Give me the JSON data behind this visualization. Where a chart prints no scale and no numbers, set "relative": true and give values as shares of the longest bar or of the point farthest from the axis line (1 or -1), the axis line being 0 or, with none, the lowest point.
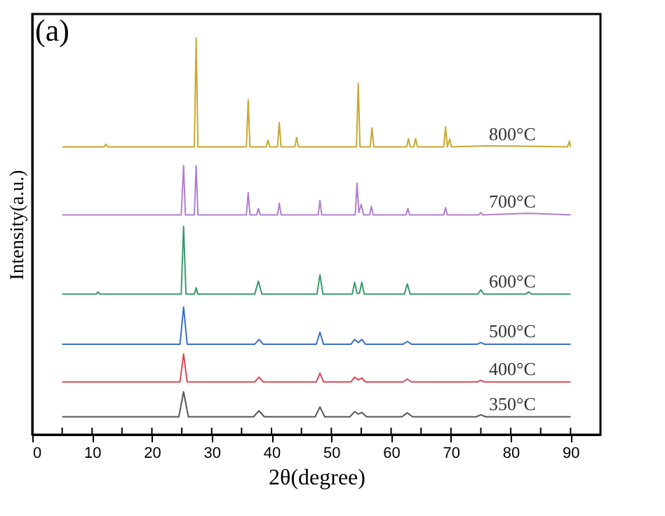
{
  "chart_data": {
    "type": "line",
    "relative": true,
    "xlabel": "2θ(degree)",
    "ylabel": "Intensity(a.u.)",
    "annotations": [
      "(a)"
    ],
    "xlim": [
      0,
      95
    ],
    "xticks": [
      0,
      {
        "value": 5,
        "label": null
      },
      10,
      {
        "value": 15,
        "label": null
      },
      20,
      {
        "value": 25,
        "label": null
      },
      30,
      {
        "value": 35,
        "label": null
      },
      40,
      {
        "value": 45,
        "label": null
      },
      50,
      {
        "value": 55,
        "label": null
      },
      60,
      {
        "value": 65,
        "label": null
      },
      70,
      {
        "value": 75,
        "label": null
      },
      80,
      {
        "value": 85,
        "label": null
      },
      90
    ],
    "grid": false,
    "marker": "none",
    "line_style": "solid",
    "series": [
      {
        "name": "800°C",
        "color": "#c8a832",
        "x": [
          5,
          12,
          12.3,
          12.6,
          20,
          27.1,
          27.4,
          27.7,
          35.8,
          36.1,
          36.4,
          39.1,
          39.4,
          39.7,
          41,
          41.3,
          41.6,
          43.9,
          44.2,
          44.5,
          54.2,
          54.5,
          54.8,
          56.5,
          56.8,
          57.1,
          62.6,
          62.9,
          63.2,
          63.8,
          64.1,
          64.4,
          68.8,
          69.1,
          69.4,
          69.8,
          70.1,
          76,
          82,
          89.5,
          89.8,
          90
        ],
        "values": [
          0.725,
          0.725,
          0.732,
          0.725,
          0.725,
          0.725,
          1.0,
          0.725,
          0.725,
          0.844,
          0.725,
          0.725,
          0.742,
          0.725,
          0.725,
          0.786,
          0.725,
          0.725,
          0.749,
          0.725,
          0.725,
          0.885,
          0.725,
          0.725,
          0.773,
          0.725,
          0.725,
          0.746,
          0.725,
          0.725,
          0.746,
          0.725,
          0.725,
          0.776,
          0.725,
          0.745,
          0.725,
          0.728,
          0.727,
          0.725,
          0.74,
          0.725
        ]
      },
      {
        "name": "700°C",
        "color": "#b07fd0",
        "x": [
          5,
          24.9,
          25.3,
          25.6,
          27.1,
          27.4,
          27.7,
          35.8,
          36.1,
          36.4,
          37.5,
          37.8,
          38.1,
          41,
          41.3,
          41.6,
          47.8,
          48.1,
          48.4,
          54,
          54.3,
          54.6,
          55,
          55.4,
          56.4,
          56.7,
          57,
          62.5,
          62.8,
          63.1,
          68.8,
          69.1,
          69.4,
          74.7,
          75,
          75.3,
          82.7,
          90
        ],
        "values": [
          0.554,
          0.554,
          0.678,
          0.554,
          0.554,
          0.678,
          0.554,
          0.554,
          0.61,
          0.554,
          0.554,
          0.57,
          0.554,
          0.554,
          0.583,
          0.554,
          0.554,
          0.59,
          0.554,
          0.554,
          0.634,
          0.56,
          0.58,
          0.554,
          0.554,
          0.575,
          0.554,
          0.554,
          0.57,
          0.554,
          0.554,
          0.572,
          0.554,
          0.554,
          0.56,
          0.554,
          0.558,
          0.554
        ]
      },
      {
        "name": "600°C",
        "color": "#3a9a6a",
        "x": [
          5,
          10.7,
          11,
          11.3,
          24.9,
          25.3,
          25.7,
          27.1,
          27.4,
          27.7,
          37.2,
          37.8,
          38.4,
          47.6,
          48.1,
          48.6,
          53.5,
          53.9,
          54.3,
          54.7,
          55.1,
          55.5,
          62.2,
          62.7,
          63.2,
          74.5,
          75,
          75.5,
          82.5,
          83,
          83.5,
          90
        ],
        "values": [
          0.354,
          0.354,
          0.36,
          0.354,
          0.354,
          0.525,
          0.354,
          0.354,
          0.37,
          0.354,
          0.354,
          0.387,
          0.354,
          0.354,
          0.403,
          0.354,
          0.354,
          0.384,
          0.356,
          0.356,
          0.384,
          0.354,
          0.354,
          0.38,
          0.354,
          0.354,
          0.365,
          0.354,
          0.354,
          0.36,
          0.354,
          0.354
        ]
      },
      {
        "name": "500°C",
        "color": "#3a6fc8",
        "x": [
          5,
          24.7,
          25.3,
          25.9,
          37.2,
          37.9,
          38.6,
          47.5,
          48.1,
          48.7,
          53.3,
          53.9,
          54.5,
          55.1,
          55.7,
          62,
          62.7,
          63.4,
          74.4,
          75,
          75.6,
          90
        ],
        "values": [
          0.228,
          0.228,
          0.322,
          0.228,
          0.228,
          0.24,
          0.228,
          0.228,
          0.258,
          0.228,
          0.228,
          0.24,
          0.232,
          0.24,
          0.228,
          0.228,
          0.235,
          0.228,
          0.228,
          0.232,
          0.228,
          0.228
        ]
      },
      {
        "name": "400°C",
        "color": "#d9485a",
        "x": [
          5,
          24.7,
          25.3,
          25.9,
          37.2,
          37.9,
          38.6,
          47.5,
          48.1,
          48.7,
          53.3,
          53.9,
          54.5,
          55.1,
          55.7,
          62,
          62.7,
          63.4,
          74.4,
          75,
          75.6,
          90
        ],
        "values": [
          0.133,
          0.133,
          0.203,
          0.133,
          0.133,
          0.145,
          0.133,
          0.133,
          0.155,
          0.133,
          0.133,
          0.145,
          0.138,
          0.143,
          0.133,
          0.133,
          0.14,
          0.133,
          0.133,
          0.137,
          0.133,
          0.133
        ]
      },
      {
        "name": "350°C",
        "color": "#555555",
        "x": [
          5,
          24.5,
          25.3,
          26.1,
          37,
          37.9,
          38.8,
          47.3,
          48.1,
          48.9,
          53.1,
          53.9,
          54.5,
          55.1,
          55.9,
          61.8,
          62.7,
          63.6,
          74.2,
          75,
          75.8,
          90
        ],
        "values": [
          0.045,
          0.045,
          0.108,
          0.045,
          0.045,
          0.06,
          0.045,
          0.045,
          0.07,
          0.045,
          0.045,
          0.058,
          0.052,
          0.056,
          0.045,
          0.045,
          0.055,
          0.045,
          0.045,
          0.05,
          0.045,
          0.045
        ]
      }
    ]
  }
}
